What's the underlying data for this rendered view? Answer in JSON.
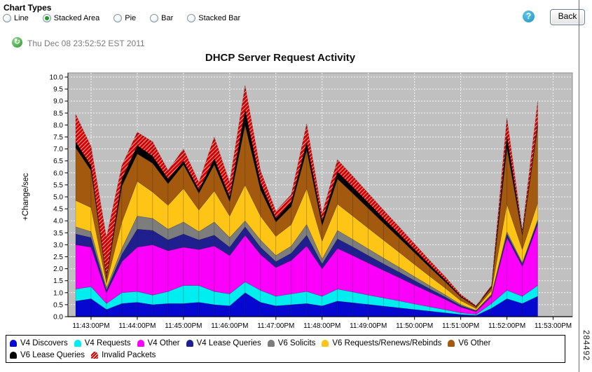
{
  "header": {
    "chart_types_label": "Chart Types",
    "options": [
      {
        "label": "Line",
        "selected": false
      },
      {
        "label": "Stacked Area",
        "selected": true
      },
      {
        "label": "Pie",
        "selected": false
      },
      {
        "label": "Bar",
        "selected": false
      },
      {
        "label": "Stacked Bar",
        "selected": false
      }
    ],
    "help_glyph": "?",
    "back_label": "Back"
  },
  "toolbar": {
    "timestamp": "Thu Dec 08 23:52:52 EST 2011",
    "refresh_glyph": "↻"
  },
  "title": "DHCP Server Request Activity",
  "figure_number": "284492",
  "chart_data": {
    "type": "area",
    "stacked": true,
    "title": "DHCP Server Request Activity",
    "xlabel": "",
    "ylabel": "+Change/sec",
    "ylim": [
      0,
      10
    ],
    "y_tick_step": 0.5,
    "y_tick_labels": [
      "0.0",
      "0.5",
      "1.0",
      "1.5",
      "2.0",
      "2.5",
      "3.0",
      "3.5",
      "4.0",
      "4.5",
      "5.0",
      "5.5",
      "6.0",
      "6.5",
      "7.0",
      "7.5",
      "8.0",
      "8.5",
      "9.0",
      "9.5",
      "10.0"
    ],
    "grid": "on",
    "plot_bg": "#c0c0c0",
    "grid_color": "#ffffff",
    "x_domain_seconds": [
      0,
      655
    ],
    "x_tick_seconds": [
      30,
      90,
      150,
      210,
      270,
      330,
      390,
      450,
      510,
      570,
      630
    ],
    "x_tick_labels": [
      "11:43:00PM",
      "11:44:00PM",
      "11:45:00PM",
      "11:46:00PM",
      "11:47:00PM",
      "11:48:00PM",
      "11:49:00PM",
      "11:50:00PM",
      "11:51:00PM",
      "11:52:00PM",
      "11:53:00PM"
    ],
    "point_seconds": [
      10,
      30,
      50,
      70,
      90,
      110,
      130,
      150,
      170,
      190,
      210,
      230,
      250,
      270,
      290,
      310,
      330,
      350,
      370,
      390,
      410,
      430,
      450,
      470,
      490,
      510,
      530,
      550,
      570,
      590,
      610
    ],
    "series": [
      {
        "name": "V4 Discovers",
        "color": "#0707d2",
        "values": [
          0.65,
          0.75,
          0.3,
          0.55,
          0.6,
          0.5,
          0.55,
          0.55,
          0.6,
          0.5,
          0.45,
          1.0,
          0.6,
          0.45,
          0.5,
          0.55,
          0.45,
          0.65,
          0.58,
          0.51,
          0.44,
          0.37,
          0.3,
          0.23,
          0.16,
          0.09,
          0.05,
          0.35,
          0.75,
          0.55,
          0.85
        ]
      },
      {
        "name": "V4 Requests",
        "color": "#00eef0",
        "values": [
          0.5,
          0.5,
          0.25,
          0.45,
          0.45,
          0.4,
          0.5,
          0.75,
          0.7,
          0.55,
          0.5,
          0.45,
          0.5,
          0.4,
          0.45,
          0.5,
          0.4,
          0.5,
          0.45,
          0.39,
          0.34,
          0.29,
          0.23,
          0.18,
          0.13,
          0.07,
          0.04,
          0.2,
          0.35,
          0.3,
          0.45
        ]
      },
      {
        "name": "V4 Other",
        "color": "#fa00fa",
        "values": [
          1.85,
          1.65,
          0.45,
          1.3,
          1.85,
          2.1,
          1.7,
          1.6,
          1.5,
          1.9,
          1.6,
          1.95,
          1.5,
          1.2,
          1.4,
          1.9,
          1.15,
          1.7,
          1.52,
          1.34,
          1.15,
          0.97,
          0.79,
          0.61,
          0.43,
          0.24,
          0.12,
          0.3,
          2.2,
          1.25,
          2.55
        ]
      },
      {
        "name": "V4 Lease Queries",
        "color": "#1f1f8f",
        "values": [
          0.45,
          0.4,
          0.1,
          0.3,
          0.75,
          0.6,
          0.45,
          0.55,
          0.4,
          0.45,
          0.35,
          0.35,
          0.3,
          0.25,
          0.3,
          0.45,
          0.2,
          0.4,
          0.36,
          0.31,
          0.27,
          0.23,
          0.19,
          0.14,
          0.1,
          0.06,
          0.03,
          0.05,
          0.15,
          0.1,
          0.15
        ]
      },
      {
        "name": "V6 Solicits",
        "color": "#7d7d7d",
        "values": [
          0.3,
          0.25,
          0.1,
          0.25,
          0.55,
          0.5,
          0.45,
          0.5,
          0.35,
          0.55,
          0.4,
          0.25,
          0.3,
          0.25,
          0.3,
          0.45,
          0.2,
          0.35,
          0.31,
          0.28,
          0.24,
          0.2,
          0.16,
          0.13,
          0.09,
          0.05,
          0.02,
          0.04,
          0.1,
          0.05,
          0.05
        ]
      },
      {
        "name": "V6 Requests/Renews/Rebinds",
        "color": "#ffc516",
        "values": [
          1.1,
          1.0,
          0.2,
          1.1,
          1.45,
          1.1,
          1.0,
          1.4,
          0.9,
          1.3,
          0.9,
          1.5,
          1.0,
          0.8,
          0.9,
          1.5,
          0.75,
          1.1,
          0.98,
          0.86,
          0.75,
          0.63,
          0.51,
          0.39,
          0.28,
          0.16,
          0.08,
          0.15,
          1.15,
          0.55,
          0.7
        ]
      },
      {
        "name": "V6 Other",
        "color": "#a35a0e",
        "values": [
          2.2,
          1.55,
          0.2,
          1.5,
          1.15,
          1.2,
          0.9,
          1.0,
          0.7,
          1.1,
          0.6,
          2.5,
          1.1,
          0.6,
          0.75,
          1.6,
          0.65,
          1.05,
          0.94,
          0.83,
          0.71,
          0.6,
          0.49,
          0.37,
          0.26,
          0.15,
          0.07,
          0.12,
          2.35,
          0.6,
          3.2
        ]
      },
      {
        "name": "V6 Lease Queries",
        "color": "#000000",
        "values": [
          0.25,
          0.2,
          0.05,
          0.3,
          0.35,
          0.3,
          0.2,
          0.15,
          0.15,
          0.25,
          0.2,
          0.65,
          0.3,
          0.15,
          0.2,
          0.35,
          0.2,
          0.3,
          0.27,
          0.24,
          0.2,
          0.17,
          0.14,
          0.11,
          0.08,
          0.04,
          0.02,
          0.04,
          0.5,
          0.1,
          0.15
        ]
      },
      {
        "name": "Invalid Packets",
        "color": "#d60000",
        "hatch": true,
        "values": [
          1.15,
          0.8,
          1.65,
          0.55,
          0.55,
          0.6,
          0.35,
          0.5,
          0.3,
          0.9,
          0.6,
          1.0,
          0.5,
          0.3,
          0.3,
          0.75,
          0.3,
          0.5,
          0.45,
          0.39,
          0.34,
          0.29,
          0.23,
          0.18,
          0.13,
          0.07,
          0.03,
          0.05,
          0.75,
          0.1,
          0.9
        ]
      }
    ],
    "legend_position": "bottom"
  },
  "legend": {
    "rows": [
      [
        "V4 Discovers",
        "V4 Requests",
        "V4 Other",
        "V4 Lease Queries",
        "V6 Solicits",
        "V6 Requests/Renews/Rebinds",
        "V6 Other"
      ],
      [
        "V6 Lease Queries",
        "Invalid Packets"
      ]
    ]
  }
}
